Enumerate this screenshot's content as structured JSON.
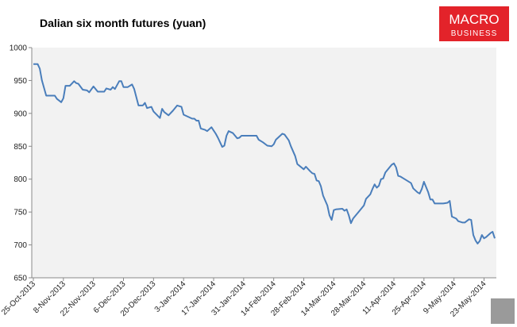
{
  "chart_data": {
    "type": "line",
    "title": "Dalian six month futures (yuan)",
    "x": [
      "2013-10-25",
      "2013-10-27",
      "2013-10-28",
      "2013-10-29",
      "2013-10-31",
      "2013-11-04",
      "2013-11-05",
      "2013-11-07",
      "2013-11-08",
      "2013-11-09",
      "2013-11-11",
      "2013-11-13",
      "2013-11-14",
      "2013-11-15",
      "2013-11-17",
      "2013-11-19",
      "2013-11-20",
      "2013-11-22",
      "2013-11-24",
      "2013-11-27",
      "2013-11-28",
      "2013-11-30",
      "2013-12-01",
      "2013-12-02",
      "2013-12-04",
      "2013-12-05",
      "2013-12-06",
      "2013-12-08",
      "2013-12-10",
      "2013-12-11",
      "2013-12-13",
      "2013-12-15",
      "2013-12-16",
      "2013-12-17",
      "2013-12-19",
      "2013-12-20",
      "2013-12-23",
      "2013-12-24",
      "2013-12-25",
      "2013-12-27",
      "2013-12-29",
      "2013-12-31",
      "2014-01-02",
      "2014-01-03",
      "2014-01-05",
      "2014-01-07",
      "2014-01-08",
      "2014-01-09",
      "2014-01-10",
      "2014-01-11",
      "2014-01-13",
      "2014-01-14",
      "2014-01-15",
      "2014-01-16",
      "2014-01-17",
      "2014-01-18",
      "2014-01-19",
      "2014-01-21",
      "2014-01-22",
      "2014-01-23",
      "2014-01-24",
      "2014-01-26",
      "2014-01-28",
      "2014-01-29",
      "2014-01-30",
      "2014-02-05",
      "2014-02-06",
      "2014-02-07",
      "2014-02-09",
      "2014-02-11",
      "2014-02-13",
      "2014-02-14",
      "2014-02-15",
      "2014-02-17",
      "2014-02-18",
      "2014-02-19",
      "2014-02-21",
      "2014-02-22",
      "2014-02-24",
      "2014-02-25",
      "2014-02-28",
      "2014-03-01",
      "2014-03-03",
      "2014-03-04",
      "2014-03-05",
      "2014-03-06",
      "2014-03-07",
      "2014-03-08",
      "2014-03-09",
      "2014-03-11",
      "2014-03-12",
      "2014-03-13",
      "2014-03-14",
      "2014-03-15",
      "2014-03-18",
      "2014-03-19",
      "2014-03-20",
      "2014-03-21",
      "2014-03-22",
      "2014-03-23",
      "2014-03-26",
      "2014-03-28",
      "2014-03-29",
      "2014-03-31",
      "2014-04-01",
      "2014-04-02",
      "2014-04-03",
      "2014-04-04",
      "2014-04-05",
      "2014-04-06",
      "2014-04-07",
      "2014-04-09",
      "2014-04-10",
      "2014-04-11",
      "2014-04-12",
      "2014-04-13",
      "2014-04-14",
      "2014-04-16",
      "2014-04-19",
      "2014-04-20",
      "2014-04-22",
      "2014-04-23",
      "2014-04-24",
      "2014-04-25",
      "2014-04-27",
      "2014-04-28",
      "2014-04-29",
      "2014-04-30",
      "2014-05-04",
      "2014-05-06",
      "2014-05-07",
      "2014-05-08",
      "2014-05-10",
      "2014-05-11",
      "2014-05-13",
      "2014-05-14",
      "2014-05-16",
      "2014-05-17",
      "2014-05-18",
      "2014-05-19",
      "2014-05-20",
      "2014-05-21",
      "2014-05-22",
      "2014-05-23",
      "2014-05-24",
      "2014-05-26",
      "2014-05-27",
      "2014-05-28"
    ],
    "series": [
      {
        "name": "Dalian six month futures",
        "color": "#4a7ebb",
        "values": [
          975,
          975,
          968,
          950,
          927,
          927,
          922,
          917,
          923,
          942,
          942,
          949,
          946,
          945,
          936,
          935,
          932,
          941,
          933,
          933,
          938,
          936,
          940,
          937,
          949,
          949,
          940,
          940,
          944,
          937,
          912,
          912,
          916,
          908,
          910,
          903,
          893,
          907,
          902,
          897,
          904,
          912,
          910,
          898,
          895,
          892,
          892,
          889,
          889,
          877,
          875,
          873,
          876,
          879,
          874,
          869,
          863,
          849,
          851,
          866,
          873,
          870,
          862,
          863,
          866,
          866,
          866,
          860,
          856,
          851,
          850,
          853,
          860,
          866,
          869,
          868,
          859,
          850,
          835,
          823,
          815,
          819,
          812,
          809,
          808,
          798,
          797,
          789,
          775,
          760,
          745,
          738,
          753,
          754,
          755,
          752,
          754,
          745,
          733,
          740,
          752,
          760,
          770,
          777,
          785,
          792,
          787,
          790,
          800,
          801,
          810,
          818,
          822,
          824,
          818,
          805,
          804,
          800,
          794,
          786,
          780,
          778,
          785,
          796,
          780,
          769,
          769,
          763,
          763,
          764,
          767,
          743,
          740,
          736,
          734,
          734,
          739,
          738,
          715,
          707,
          702,
          706,
          715,
          710,
          712,
          718,
          720,
          710
        ]
      }
    ],
    "xlim": [
      "2013-10-25",
      "2014-05-28"
    ],
    "xticks": [
      {
        "value": "2013-10-25",
        "label": "25-Oct-2013"
      },
      {
        "value": "2013-11-08",
        "label": "8-Nov-2013"
      },
      {
        "value": "2013-11-22",
        "label": "22-Nov-2013"
      },
      {
        "value": "2013-12-06",
        "label": "6-Dec-2013"
      },
      {
        "value": "2013-12-20",
        "label": "20-Dec-2013"
      },
      {
        "value": "2014-01-03",
        "label": "3-Jan-2014"
      },
      {
        "value": "2014-01-17",
        "label": "17-Jan-2014"
      },
      {
        "value": "2014-01-31",
        "label": "31-Jan-2014"
      },
      {
        "value": "2014-02-14",
        "label": "14-Feb-2014"
      },
      {
        "value": "2014-02-28",
        "label": "28-Feb-2014"
      },
      {
        "value": "2014-03-14",
        "label": "14-Mar-2014"
      },
      {
        "value": "2014-03-28",
        "label": "28-Mar-2014"
      },
      {
        "value": "2014-04-11",
        "label": "11-Apr-2014"
      },
      {
        "value": "2014-04-25",
        "label": "25-Apr-2014"
      },
      {
        "value": "2014-05-09",
        "label": "9-May-2014"
      },
      {
        "value": "2014-05-23",
        "label": "23-May-2014"
      }
    ],
    "ylim": [
      650,
      1000
    ],
    "yticks": [
      650,
      700,
      750,
      800,
      850,
      900,
      950,
      1000
    ],
    "grid": false
  },
  "logo": {
    "line1": "MACRO",
    "line2": "BUSINESS"
  }
}
